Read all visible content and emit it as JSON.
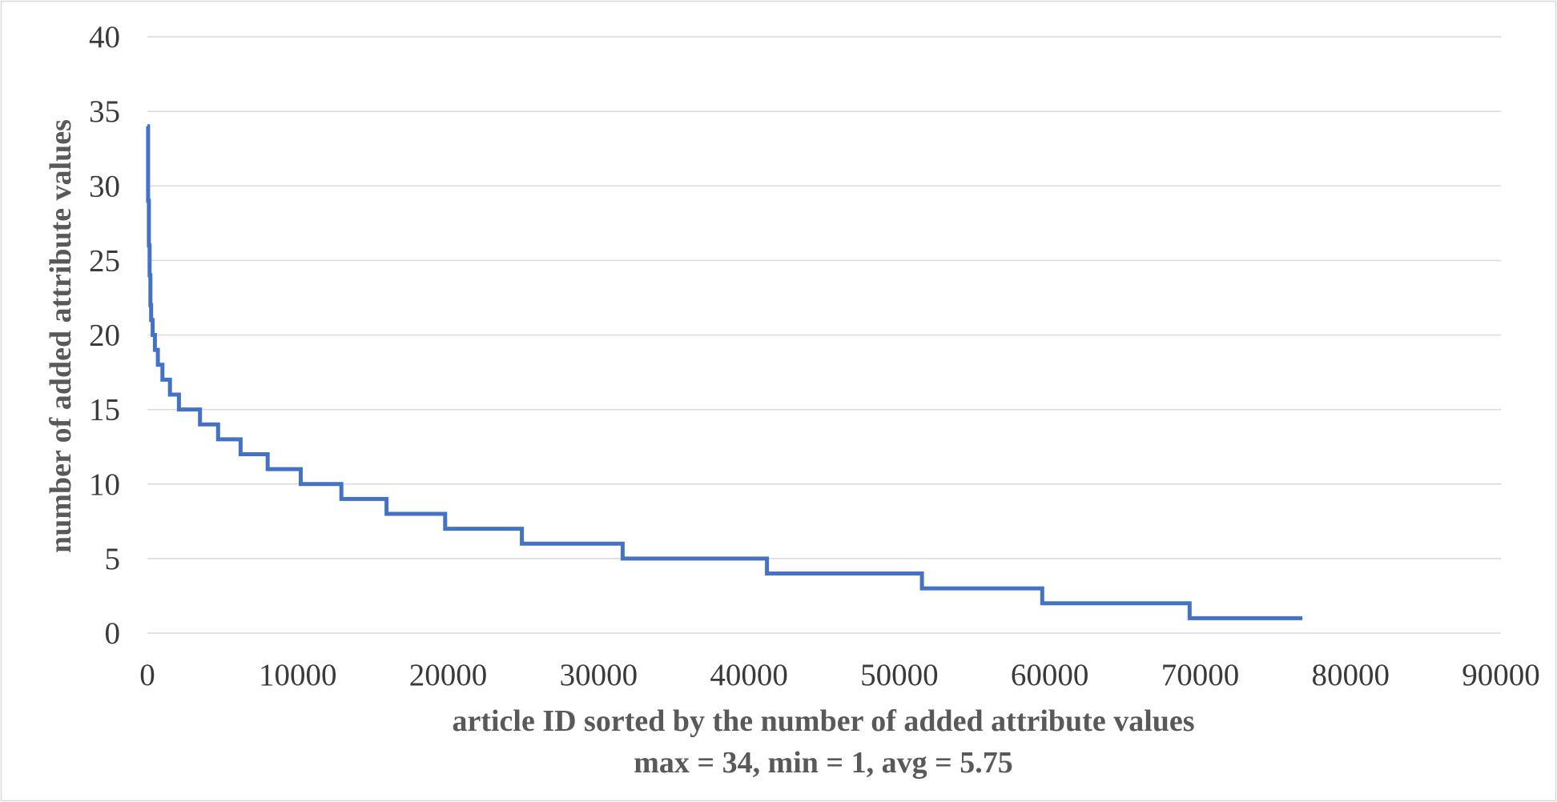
{
  "chart_data": {
    "type": "line",
    "xlabel": "article ID sorted by the number of added attribute values",
    "subtitle": "max = 34, min = 1, avg = 5.75",
    "ylabel": "number of added attribute values",
    "xlim": [
      0,
      90000
    ],
    "ylim": [
      0,
      40
    ],
    "x_ticks": [
      "0",
      "10000",
      "20000",
      "30000",
      "40000",
      "50000",
      "60000",
      "70000",
      "80000",
      "90000"
    ],
    "y_ticks": [
      "0",
      "5",
      "10",
      "15",
      "20",
      "25",
      "30",
      "35",
      "40"
    ],
    "grid": "horizontal",
    "line_style": "step",
    "colors": {
      "series": "#4472c4",
      "grid": "#d9d9d9"
    },
    "series": [
      {
        "points": [
          [
            0,
            34
          ],
          [
            50,
            29
          ],
          [
            100,
            26
          ],
          [
            150,
            24
          ],
          [
            200,
            22
          ],
          [
            250,
            21
          ],
          [
            350,
            20
          ],
          [
            500,
            19
          ],
          [
            700,
            18
          ],
          [
            1000,
            17
          ],
          [
            1500,
            16
          ],
          [
            2100,
            15
          ],
          [
            3500,
            14
          ],
          [
            4700,
            13
          ],
          [
            6200,
            12
          ],
          [
            8000,
            11
          ],
          [
            10200,
            10
          ],
          [
            12900,
            9
          ],
          [
            15900,
            8
          ],
          [
            19800,
            7
          ],
          [
            24900,
            6
          ],
          [
            31600,
            5
          ],
          [
            41200,
            4
          ],
          [
            51500,
            3
          ],
          [
            59500,
            2
          ],
          [
            69300,
            1
          ],
          [
            76800,
            1
          ]
        ]
      }
    ]
  }
}
